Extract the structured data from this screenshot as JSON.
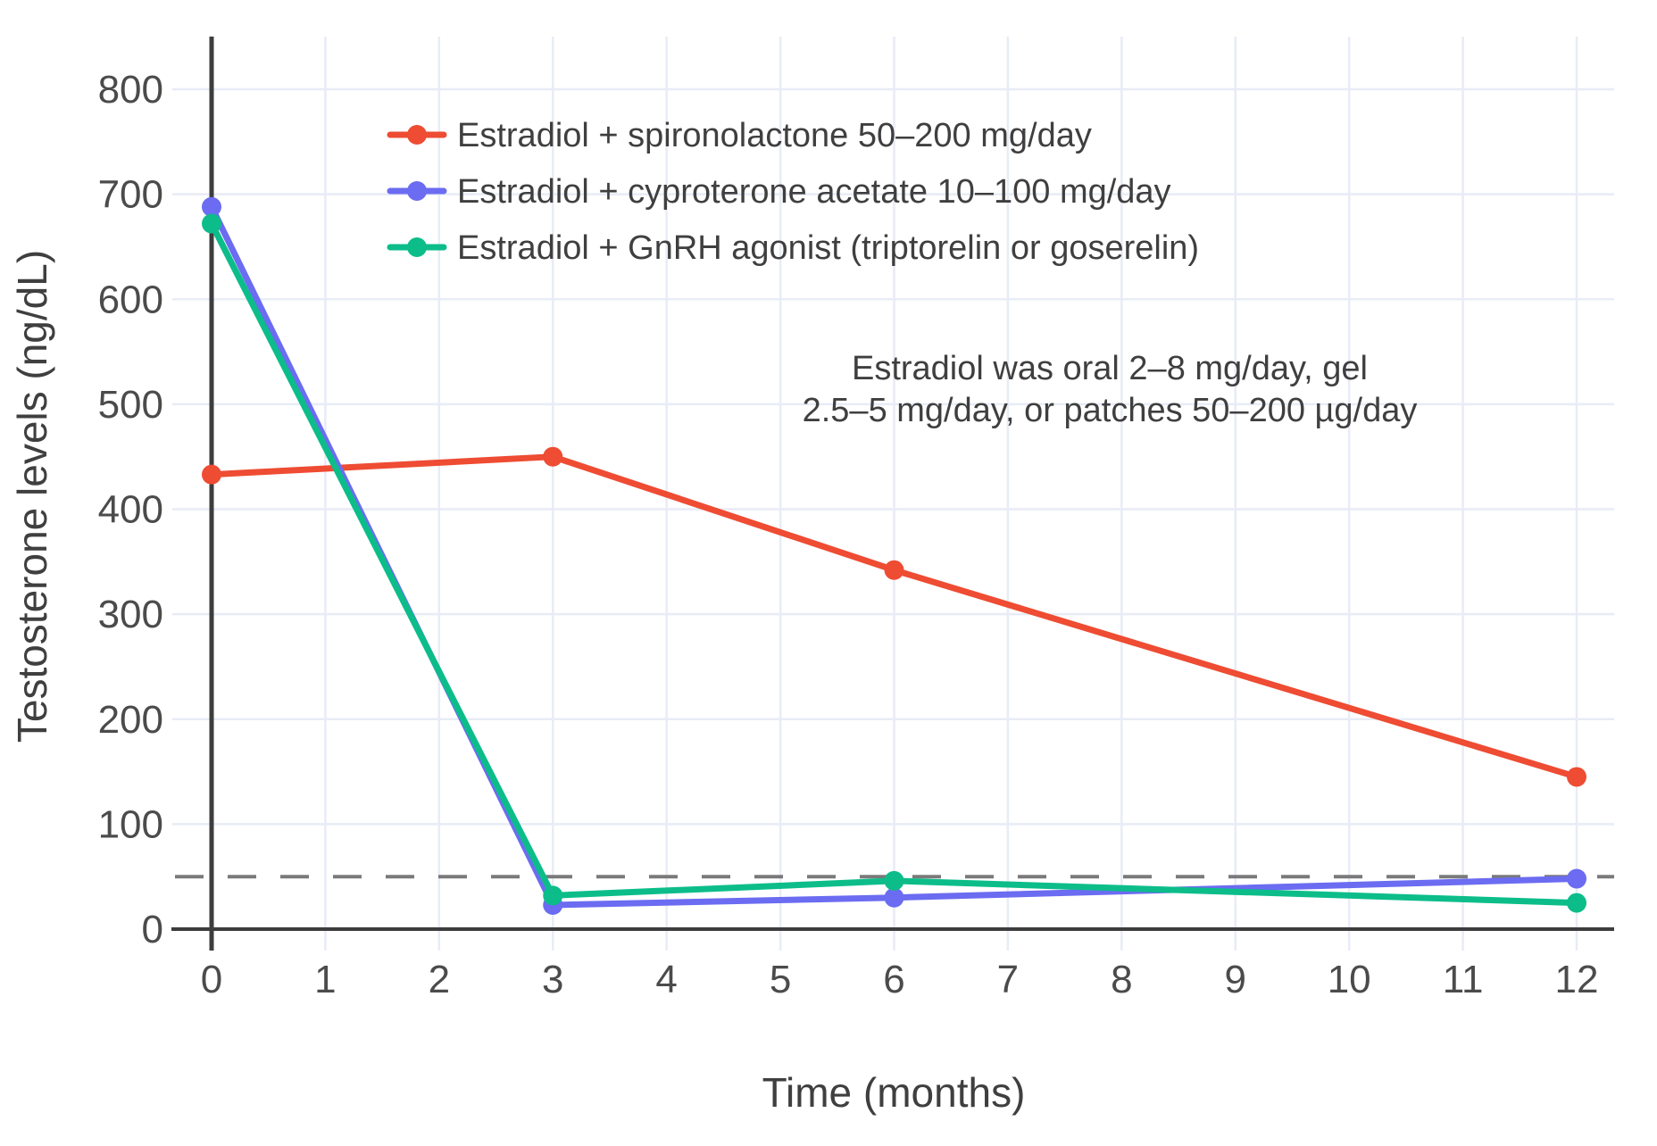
{
  "chart_data": {
    "type": "line",
    "title": "",
    "xlabel": "Time (months)",
    "ylabel": "Testosterone levels (ng/dL)",
    "x": [
      0,
      3,
      6,
      12
    ],
    "xlim": [
      0,
      12
    ],
    "ylim": [
      0,
      800
    ],
    "x_ticks": [
      0,
      1,
      2,
      3,
      4,
      5,
      6,
      7,
      8,
      9,
      10,
      11,
      12
    ],
    "y_ticks": [
      0,
      100,
      200,
      300,
      400,
      500,
      600,
      700,
      800
    ],
    "grid": true,
    "legend_position": "top-left-inside",
    "series": [
      {
        "name": "Estradiol + spironolactone 50–200 mg/day",
        "color": "#ee4c33",
        "values": [
          433,
          450,
          342,
          145
        ]
      },
      {
        "name": "Estradiol + cyproterone acetate 10–100 mg/day",
        "color": "#6b6cf1",
        "values": [
          688,
          23,
          30,
          48
        ]
      },
      {
        "name": "Estradiol + GnRH agonist (triptorelin or goserelin)",
        "color": "#0cbd8a",
        "values": [
          672,
          32,
          46,
          25
        ]
      }
    ],
    "threshold_line": {
      "value": 50,
      "style": "dashed",
      "color": "#7a7a7a"
    },
    "annotation": {
      "line1": "Estradiol was oral 2–8 mg/day, gel",
      "line2": "2.5–5 mg/day, or patches 50–200 µg/day"
    },
    "colors": {
      "grid": "#e8ecf6",
      "axis": "#3d3d3d",
      "tick_text": "#4b4b4b",
      "label_text": "#3f3f3f",
      "background": "#ffffff"
    }
  }
}
